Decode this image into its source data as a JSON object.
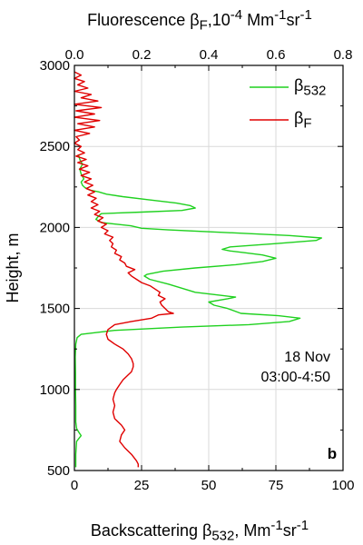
{
  "chart_data": {
    "type": "line",
    "x_bottom_label_html": "Backscattering β<sub>532</sub>, Mm<sup>-1</sup>sr<sup>-1</sup>",
    "x_top_label_html": "Fluorescence β<sub>F</sub>,10<sup>-4</sup> Mm<sup>-1</sup>sr<sup>-1</sup>",
    "ylabel": "Height, m",
    "x_bottom_lim": [
      0,
      100
    ],
    "x_top_lim": [
      0,
      0.8
    ],
    "ylim": [
      500,
      3000
    ],
    "x_bottom_ticks": [
      "0",
      "25",
      "50",
      "75",
      "100"
    ],
    "x_top_ticks": [
      "0.0",
      "0.2",
      "0.4",
      "0.6",
      "0.8"
    ],
    "y_ticks": [
      "500",
      "1000",
      "1500",
      "2000",
      "2500",
      "3000"
    ],
    "grid": true,
    "legend_position": "top-right",
    "annotation_lines": [
      "18 Nov",
      "03:00-4:50"
    ],
    "panel_label": "b",
    "series": [
      {
        "name_html": "β<sub>532</sub>",
        "color": "#1fd11f",
        "axis": "bottom",
        "points": [
          [
            0.5,
            520
          ],
          [
            0.5,
            600
          ],
          [
            0.8,
            680
          ],
          [
            2.5,
            715
          ],
          [
            1.5,
            740
          ],
          [
            0.8,
            760
          ],
          [
            0.5,
            800
          ],
          [
            0.5,
            900
          ],
          [
            0.4,
            1000
          ],
          [
            0.4,
            1100
          ],
          [
            0.3,
            1200
          ],
          [
            0.5,
            1280
          ],
          [
            1.0,
            1320
          ],
          [
            2.5,
            1340
          ],
          [
            15,
            1365
          ],
          [
            40,
            1385
          ],
          [
            65,
            1400
          ],
          [
            80,
            1420
          ],
          [
            84,
            1440
          ],
          [
            76,
            1455
          ],
          [
            62,
            1470
          ],
          [
            57,
            1500
          ],
          [
            52,
            1520
          ],
          [
            50,
            1540
          ],
          [
            57,
            1560
          ],
          [
            60,
            1570
          ],
          [
            55,
            1580
          ],
          [
            45,
            1600
          ],
          [
            40,
            1625
          ],
          [
            35,
            1650
          ],
          [
            28,
            1680
          ],
          [
            26,
            1700
          ],
          [
            27,
            1710
          ],
          [
            33,
            1730
          ],
          [
            45,
            1750
          ],
          [
            60,
            1770
          ],
          [
            70,
            1790
          ],
          [
            75,
            1810
          ],
          [
            70,
            1830
          ],
          [
            63,
            1845
          ],
          [
            58,
            1855
          ],
          [
            55,
            1865
          ],
          [
            58,
            1880
          ],
          [
            75,
            1900
          ],
          [
            90,
            1920
          ],
          [
            92,
            1935
          ],
          [
            80,
            1950
          ],
          [
            55,
            1970
          ],
          [
            35,
            1985
          ],
          [
            25,
            1995
          ],
          [
            21,
            2010
          ],
          [
            10,
            2030
          ],
          [
            8,
            2050
          ],
          [
            9,
            2070
          ],
          [
            10,
            2085
          ],
          [
            25,
            2095
          ],
          [
            40,
            2105
          ],
          [
            45,
            2120
          ],
          [
            43,
            2135
          ],
          [
            38,
            2150
          ],
          [
            28,
            2170
          ],
          [
            18,
            2190
          ],
          [
            12,
            2205
          ],
          [
            9,
            2220
          ],
          [
            6,
            2230
          ],
          [
            4,
            2245
          ],
          [
            3,
            2260
          ],
          [
            2.5,
            2280
          ],
          [
            3.5,
            2300
          ],
          [
            2.5,
            2330
          ],
          [
            2,
            2360
          ],
          [
            3,
            2390
          ],
          [
            2,
            2420
          ],
          [
            1.5,
            2450
          ]
        ]
      },
      {
        "name_html": "β<sub>F</sub>",
        "color": "#e00000",
        "axis": "top",
        "points": [
          [
            0.19,
            520
          ],
          [
            0.19,
            540
          ],
          [
            0.185,
            560
          ],
          [
            0.17,
            600
          ],
          [
            0.15,
            640
          ],
          [
            0.135,
            680
          ],
          [
            0.14,
            720
          ],
          [
            0.15,
            750
          ],
          [
            0.14,
            780
          ],
          [
            0.12,
            820
          ],
          [
            0.115,
            860
          ],
          [
            0.12,
            900
          ],
          [
            0.115,
            940
          ],
          [
            0.12,
            980
          ],
          [
            0.125,
            1000
          ],
          [
            0.135,
            1030
          ],
          [
            0.145,
            1060
          ],
          [
            0.16,
            1090
          ],
          [
            0.17,
            1110
          ],
          [
            0.175,
            1140
          ],
          [
            0.175,
            1160
          ],
          [
            0.17,
            1190
          ],
          [
            0.16,
            1220
          ],
          [
            0.145,
            1250
          ],
          [
            0.12,
            1280
          ],
          [
            0.1,
            1310
          ],
          [
            0.095,
            1340
          ],
          [
            0.1,
            1370
          ],
          [
            0.12,
            1400
          ],
          [
            0.17,
            1420
          ],
          [
            0.23,
            1440
          ],
          [
            0.25,
            1460
          ],
          [
            0.295,
            1470
          ],
          [
            0.28,
            1480
          ],
          [
            0.27,
            1500
          ],
          [
            0.26,
            1520
          ],
          [
            0.255,
            1540
          ],
          [
            0.27,
            1560
          ],
          [
            0.25,
            1580
          ],
          [
            0.255,
            1600
          ],
          [
            0.24,
            1620
          ],
          [
            0.225,
            1640
          ],
          [
            0.2,
            1660
          ],
          [
            0.185,
            1680
          ],
          [
            0.17,
            1700
          ],
          [
            0.16,
            1720
          ],
          [
            0.18,
            1740
          ],
          [
            0.155,
            1760
          ],
          [
            0.15,
            1780
          ],
          [
            0.135,
            1800
          ],
          [
            0.14,
            1820
          ],
          [
            0.12,
            1840
          ],
          [
            0.125,
            1860
          ],
          [
            0.11,
            1880
          ],
          [
            0.115,
            1900
          ],
          [
            0.105,
            1920
          ],
          [
            0.115,
            1940
          ],
          [
            0.09,
            1960
          ],
          [
            0.1,
            1980
          ],
          [
            0.08,
            2000
          ],
          [
            0.095,
            2020
          ],
          [
            0.07,
            2040
          ],
          [
            0.085,
            2060
          ],
          [
            0.06,
            2080
          ],
          [
            0.075,
            2100
          ],
          [
            0.05,
            2120
          ],
          [
            0.07,
            2140
          ],
          [
            0.05,
            2160
          ],
          [
            0.065,
            2180
          ],
          [
            0.04,
            2200
          ],
          [
            0.06,
            2220
          ],
          [
            0.035,
            2240
          ],
          [
            0.055,
            2260
          ],
          [
            0.03,
            2280
          ],
          [
            0.05,
            2300
          ],
          [
            0.02,
            2320
          ],
          [
            0.045,
            2340
          ],
          [
            0.015,
            2360
          ],
          [
            0.04,
            2380
          ],
          [
            0.01,
            2400
          ],
          [
            0.035,
            2420
          ],
          [
            0.005,
            2440
          ],
          [
            0.03,
            2460
          ],
          [
            0.01,
            2480
          ],
          [
            0.02,
            2500
          ],
          [
            0.0,
            2520
          ],
          [
            0.015,
            2540
          ],
          [
            0.005,
            2560
          ],
          [
            0.045,
            2580
          ],
          [
            0.0,
            2600
          ],
          [
            0.06,
            2620
          ],
          [
            0.01,
            2640
          ],
          [
            0.075,
            2660
          ],
          [
            0.0,
            2680
          ],
          [
            0.06,
            2700
          ],
          [
            0.005,
            2720
          ],
          [
            0.08,
            2740
          ],
          [
            0.0,
            2760
          ],
          [
            0.07,
            2780
          ],
          [
            0.02,
            2800
          ],
          [
            0.05,
            2820
          ],
          [
            0.0,
            2840
          ],
          [
            0.04,
            2860
          ],
          [
            0.01,
            2880
          ],
          [
            0.03,
            2900
          ],
          [
            0.0,
            2920
          ],
          [
            0.02,
            2940
          ],
          [
            0.0,
            2960
          ]
        ]
      }
    ]
  }
}
